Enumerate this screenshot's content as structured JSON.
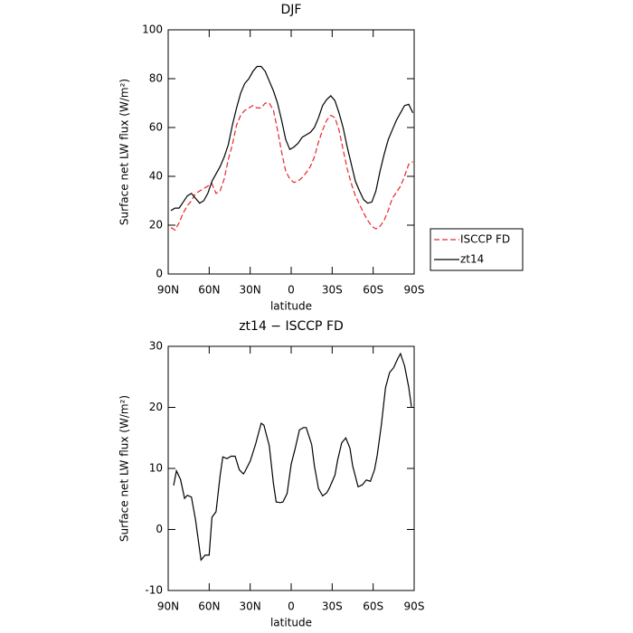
{
  "chart_data": [
    {
      "type": "line",
      "title": "DJF",
      "xlabel": "latitude",
      "ylabel": "Surface net LW flux (W/m²)",
      "x": [
        88,
        85,
        82,
        79,
        76,
        73,
        70,
        67,
        64,
        61,
        58,
        55,
        52,
        49,
        46,
        43,
        40,
        37,
        34,
        31,
        28,
        25,
        22,
        19,
        16,
        13,
        10,
        7,
        4,
        1,
        -2,
        -5,
        -8,
        -11,
        -14,
        -17,
        -20,
        -23,
        -26,
        -29,
        -32,
        -35,
        -38,
        -41,
        -44,
        -47,
        -50,
        -53,
        -56,
        -59,
        -62,
        -65,
        -68,
        -71,
        -74,
        -77,
        -80,
        -83,
        -86,
        -89
      ],
      "series": [
        {
          "name": "ISCCP FD",
          "color": "#e8262a",
          "style": "dashed",
          "values": [
            19,
            18,
            21,
            25,
            28,
            30,
            33,
            34,
            35,
            36,
            37,
            33,
            34,
            39,
            47,
            53,
            61,
            65,
            67,
            68,
            69,
            68,
            68,
            70,
            70,
            67,
            59,
            50,
            42,
            39,
            37.5,
            38,
            39.5,
            41.5,
            44,
            48,
            54,
            59,
            63,
            65,
            64,
            59,
            51,
            43,
            37,
            32,
            28.5,
            25,
            22,
            19.5,
            18.5,
            19.5,
            22,
            26,
            31,
            33.5,
            36,
            40,
            45,
            46
          ]
        },
        {
          "name": "zt14",
          "color": "#000000",
          "style": "solid",
          "values": [
            26,
            27,
            27,
            29.5,
            32,
            33,
            31,
            29,
            30,
            33,
            38,
            41,
            44,
            48,
            53,
            61,
            68,
            74,
            78,
            80,
            83,
            85,
            85,
            83,
            79,
            75,
            70,
            63,
            55,
            51,
            52,
            53.5,
            56,
            57,
            58,
            60,
            64,
            69,
            71.5,
            73,
            71,
            66,
            60,
            52,
            45,
            38,
            34,
            30.5,
            29,
            29.5,
            34,
            42,
            49,
            55,
            59,
            63,
            66,
            69,
            69.5,
            66
          ]
        }
      ],
      "xlim": [
        90,
        -90
      ],
      "xticks": [
        {
          "value": 90,
          "label": "90N"
        },
        {
          "value": 60,
          "label": "60N"
        },
        {
          "value": 30,
          "label": "30N"
        },
        0,
        {
          "value": -30,
          "label": "30S"
        },
        {
          "value": -60,
          "label": "60S"
        },
        {
          "value": -90,
          "label": "90S"
        }
      ],
      "ylim": [
        0,
        100
      ],
      "yticks": [
        0,
        20,
        40,
        60,
        80,
        100
      ],
      "legend": "right"
    },
    {
      "type": "line",
      "title": "zt14 − ISCCP FD",
      "xlabel": "latitude",
      "ylabel": "Surface net LW flux (W/m²)",
      "x": [
        86,
        84,
        81,
        78,
        76,
        73,
        70,
        66,
        63,
        60,
        58,
        55,
        52,
        50,
        47,
        44,
        41,
        38,
        35,
        34,
        30,
        26,
        22,
        20,
        16,
        13,
        11,
        8,
        6,
        3,
        0,
        -3,
        -6,
        -9,
        -11,
        -15,
        -17,
        -20,
        -23,
        -26,
        -28,
        -32,
        -34,
        -37,
        -40,
        -43,
        -45,
        -49,
        -52,
        -55,
        -58,
        -61,
        -63,
        -66,
        -69,
        -72,
        -75,
        -78,
        -80,
        -83,
        -86,
        -88
      ],
      "series": [
        {
          "name": "zt14 − ISCCP FD",
          "color": "#000000",
          "style": "solid",
          "values": [
            7.2,
            9.6,
            8.2,
            5.1,
            5.6,
            5.3,
            1.6,
            -5,
            -4.2,
            -4.2,
            2,
            2.9,
            8.8,
            11.9,
            11.6,
            12,
            12,
            9.8,
            9.1,
            9.4,
            11.2,
            14,
            17.4,
            17.1,
            13.7,
            7.5,
            4.5,
            4.4,
            4.5,
            5.9,
            10.7,
            13.3,
            16.3,
            16.7,
            16.7,
            13.9,
            10.4,
            6.7,
            5.5,
            6,
            6.8,
            8.9,
            11.4,
            14.2,
            15,
            13.3,
            10.4,
            7,
            7.3,
            8.1,
            7.9,
            9.8,
            12.2,
            17.1,
            23.2,
            25.7,
            26.5,
            28,
            28.8,
            26.8,
            23.3,
            20.1
          ]
        }
      ],
      "xlim": [
        90,
        -90
      ],
      "xticks": [
        {
          "value": 90,
          "label": "90N"
        },
        {
          "value": 60,
          "label": "60N"
        },
        {
          "value": 30,
          "label": "30N"
        },
        0,
        {
          "value": -30,
          "label": "30S"
        },
        {
          "value": -60,
          "label": "60S"
        },
        {
          "value": -90,
          "label": "90S"
        }
      ],
      "ylim": [
        -10,
        30
      ],
      "yticks": [
        -10,
        0,
        10,
        20,
        30
      ]
    }
  ]
}
